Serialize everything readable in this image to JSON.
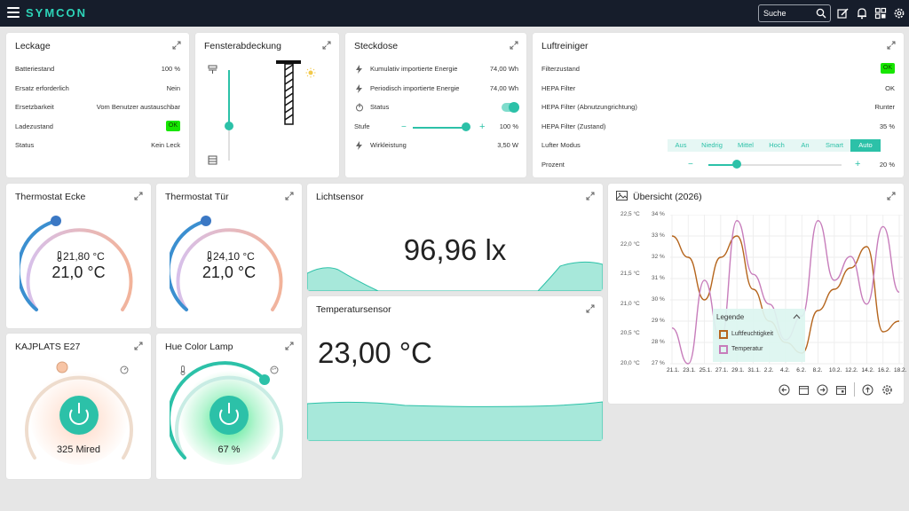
{
  "header": {
    "brand": "SYMCON",
    "search_placeholder": "Suche",
    "icons": [
      "menu-icon",
      "search-icon",
      "edit-icon",
      "bell-icon",
      "grid-icon",
      "settings-icon"
    ]
  },
  "leckage": {
    "title": "Leckage",
    "rows": [
      {
        "label": "Batteriestand",
        "value": "100 %"
      },
      {
        "label": "Ersatz erforderlich",
        "value": "Nein"
      },
      {
        "label": "Ersetzbarkeit",
        "value": "Vom Benutzer austauschbar"
      },
      {
        "label": "Ladezustand",
        "value": "OK"
      },
      {
        "label": "Status",
        "value": "Kein Leck"
      }
    ]
  },
  "fenster": {
    "title": "Fensterabdeckung",
    "position_percent": 0.35
  },
  "steckdose": {
    "title": "Steckdose",
    "rows": [
      {
        "label": "Kumulativ importierte Energie",
        "value": "74,00 Wh"
      },
      {
        "label": "Periodisch importierte Energie",
        "value": "74,00 Wh"
      },
      {
        "label": "Status",
        "value": ""
      },
      {
        "label": "Stufe",
        "value": "100 %"
      },
      {
        "label": "Wirkleistung",
        "value": "3,50 W"
      }
    ],
    "stufe_percent": 100
  },
  "luft": {
    "title": "Luftreiniger",
    "rows": [
      {
        "label": "Filterzustand",
        "value": "OK"
      },
      {
        "label": "HEPA Filter",
        "value": "OK"
      },
      {
        "label": "HEPA Filter (Abnutzungrichtung)",
        "value": "Runter"
      },
      {
        "label": "HEPA Filter (Zustand)",
        "value": "35 %"
      },
      {
        "label": "Lufter Modus",
        "value": ""
      },
      {
        "label": "Prozent",
        "value": "20 %"
      }
    ],
    "modes": [
      "Aus",
      "Niedrig",
      "Mittel",
      "Hoch",
      "An",
      "Smart",
      "Auto"
    ],
    "active_mode": "Auto",
    "prozent": 20
  },
  "thermo_ecke": {
    "title": "Thermostat Ecke",
    "current": "21,80 °C",
    "target": "21,0 °C"
  },
  "thermo_tuer": {
    "title": "Thermostat Tür",
    "current": "24,10 °C",
    "target": "21,0 °C"
  },
  "licht": {
    "title": "Lichtsensor",
    "value": "96,96 lx"
  },
  "temp": {
    "title": "Temperatursensor",
    "value": "23,00 °C"
  },
  "kajplats": {
    "title": "KAJPLATS E27",
    "value": "325 Mired"
  },
  "hue": {
    "title": "Hue Color Lamp",
    "value": "67 %"
  },
  "overview": {
    "title": "Übersicht (2026)",
    "legend_title": "Legende"
  },
  "chart_data": {
    "type": "line",
    "title": "Übersicht (2026)",
    "x": [
      "21.1.",
      "23.1.",
      "25.1.",
      "27.1.",
      "29.1.",
      "31.1.",
      "2.2.",
      "4.2.",
      "6.2.",
      "8.2.",
      "10.2.",
      "12.2.",
      "14.2.",
      "16.2.",
      "18.2."
    ],
    "y_left_ticks": [
      "22,5 °C",
      "22,0 °C",
      "21,5 °C",
      "21,0 °C",
      "20,5 °C",
      "20,0 °C"
    ],
    "y_right_ticks": [
      "34 %",
      "33 %",
      "32 %",
      "31 %",
      "30 %",
      "29 %",
      "28 %",
      "27 %"
    ],
    "y_left_range": [
      20.0,
      22.5
    ],
    "y_right_range": [
      27,
      34
    ],
    "series": [
      {
        "name": "Luftfeuchtigkeit",
        "color": "#b5651d",
        "axis": "right",
        "values": [
          33,
          32,
          30,
          32,
          33,
          30.5,
          29,
          28,
          27.5,
          29.5,
          30.5,
          31.5,
          32.5,
          28.5,
          29
        ]
      },
      {
        "name": "Temperatur",
        "color": "#c77dbb",
        "axis": "left",
        "values": [
          20.6,
          20.0,
          21.4,
          20.4,
          22.4,
          21.5,
          21.0,
          20.4,
          20.8,
          22.4,
          21.4,
          21.8,
          21.0,
          22.3,
          21.2
        ]
      }
    ],
    "grid": true,
    "legend": "center"
  }
}
